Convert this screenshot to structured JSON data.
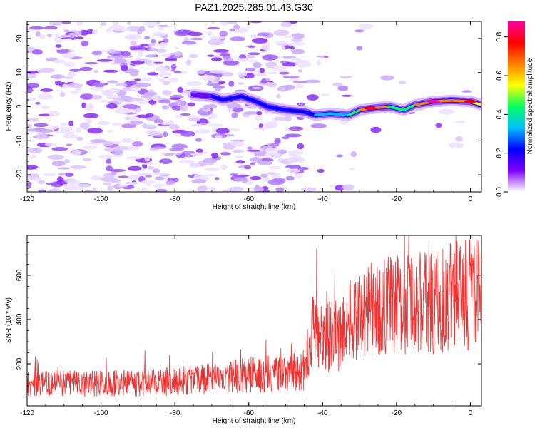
{
  "figure_title": "PAZ1.2025.285.01.43.G30",
  "chart_data": [
    {
      "type": "heatmap",
      "title": "PAZ1.2025.285.01.43.G30",
      "xlabel": "Height of straight line (km)",
      "ylabel": "Frequency (Hz)",
      "xlim": [
        -120,
        3
      ],
      "ylim": [
        -25,
        25
      ],
      "x_ticks": [
        -120,
        -100,
        -80,
        -60,
        -40,
        -20,
        0
      ],
      "y_ticks": [
        -20,
        -10,
        0,
        10,
        20
      ],
      "x_tick_labels": [
        "-120",
        "-100",
        "-80",
        "-60",
        "-40",
        "-20",
        "0"
      ],
      "y_tick_labels": [
        "-20",
        "-10",
        "0",
        "10",
        "20"
      ],
      "colorbar": {
        "label": "Normalized spectral amplitude",
        "range": [
          0.0,
          0.88
        ],
        "ticks": [
          0.0,
          0.2,
          0.4,
          0.6,
          0.8
        ],
        "tick_labels": [
          "0.0",
          "0.2",
          "0.4",
          "0.6",
          "0.8"
        ],
        "colors": [
          "#ffffff",
          "#7f00ff",
          "#0000ff",
          "#00c0ff",
          "#00ff60",
          "#ffff00",
          "#ff8000",
          "#ff0000",
          "#ff00a0"
        ]
      },
      "ridge": [
        {
          "x": -75,
          "y": 3.5,
          "v": 0.12
        },
        {
          "x": -70,
          "y": 3.0,
          "v": 0.2
        },
        {
          "x": -67,
          "y": 2.0,
          "v": 0.3
        },
        {
          "x": -62,
          "y": 3.0,
          "v": 0.18
        },
        {
          "x": -58,
          "y": 1.5,
          "v": 0.22
        },
        {
          "x": -55,
          "y": 0.0,
          "v": 0.3
        },
        {
          "x": -50,
          "y": -1.0,
          "v": 0.15
        },
        {
          "x": -45,
          "y": -1.5,
          "v": 0.2
        },
        {
          "x": -42,
          "y": -2.5,
          "v": 0.28
        },
        {
          "x": -38,
          "y": -2.0,
          "v": 0.35
        },
        {
          "x": -33,
          "y": -2.5,
          "v": 0.4
        },
        {
          "x": -30,
          "y": -1.0,
          "v": 0.45
        },
        {
          "x": -27,
          "y": -0.5,
          "v": 0.8
        },
        {
          "x": -22,
          "y": 0.0,
          "v": 0.5
        },
        {
          "x": -18,
          "y": -1.0,
          "v": 0.4
        },
        {
          "x": -15,
          "y": 0.5,
          "v": 0.55
        },
        {
          "x": -10,
          "y": 1.5,
          "v": 0.85
        },
        {
          "x": -5,
          "y": 1.8,
          "v": 0.55
        },
        {
          "x": 0,
          "y": 1.5,
          "v": 0.8
        },
        {
          "x": 3,
          "y": 0.5,
          "v": 0.4
        }
      ]
    },
    {
      "type": "line",
      "xlabel": "Height of straight line (km)",
      "ylabel": "SNR (10 * v/v)",
      "xlim": [
        -120,
        3
      ],
      "ylim": [
        10,
        780
      ],
      "x_ticks": [
        -120,
        -100,
        -80,
        -60,
        -40,
        -20,
        0
      ],
      "y_ticks": [
        200,
        400,
        600
      ],
      "x_tick_labels": [
        "-120",
        "-100",
        "-80",
        "-60",
        "-40",
        "-20",
        "0"
      ],
      "y_tick_labels": [
        "200",
        "400",
        "600"
      ],
      "series": [
        {
          "name": "SNR",
          "color": "#ee3333",
          "x": [
            -120,
            -110,
            -100,
            -90,
            -80,
            -70,
            -60,
            -50,
            -45,
            -43,
            -40,
            -35,
            -32,
            -30,
            -28,
            -25,
            -20,
            -15,
            -10,
            -5,
            0,
            3
          ],
          "values": [
            110,
            110,
            110,
            115,
            120,
            130,
            150,
            160,
            170,
            340,
            320,
            330,
            420,
            400,
            440,
            470,
            460,
            480,
            480,
            500,
            520,
            560
          ]
        }
      ]
    }
  ]
}
